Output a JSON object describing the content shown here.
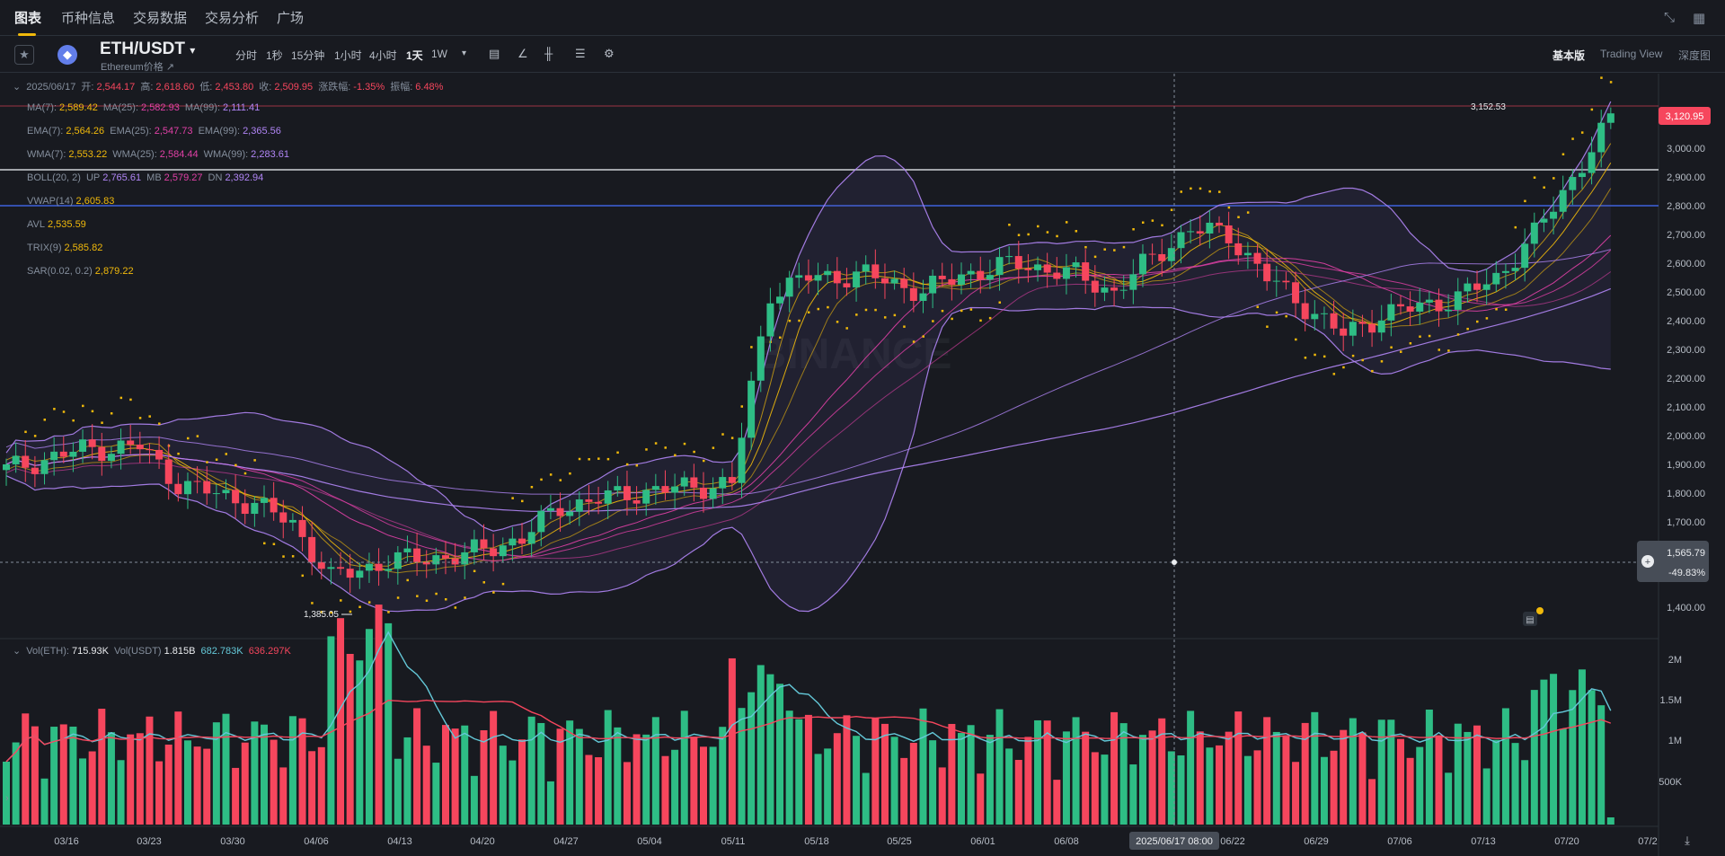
{
  "nav": {
    "tabs": [
      "图表",
      "币种信息",
      "交易数据",
      "交易分析",
      "广场"
    ],
    "active_tab": 0,
    "right_icons": [
      "collapse-icon",
      "layout-grid-icon"
    ]
  },
  "toolbar": {
    "pair": "ETH/USDT",
    "pair_caret": "▾",
    "subtitle": "Ethereum价格 ↗",
    "timeframes": [
      "分时",
      "1秒",
      "15分钟",
      "1小时",
      "4小时",
      "1天",
      "1W"
    ],
    "active_timeframe": "1天",
    "more_caret": "▾",
    "tool_icons": [
      "calendar-icon",
      "indicator-icon",
      "candle-type-icon",
      "layout-icon",
      "settings-icon"
    ],
    "views": [
      "基本版",
      "Trading View",
      "深度图"
    ],
    "active_view": "基本版"
  },
  "ohlc": {
    "date": "2025/06/17",
    "open_label": "开:",
    "open": "2,544.17",
    "high_label": "高:",
    "high": "2,618.60",
    "low_label": "低:",
    "low": "2,453.80",
    "close_label": "收:",
    "close": "2,509.95",
    "change_label": "涨跌幅:",
    "change": "-1.35%",
    "amp_label": "振幅:",
    "amp": "6.48%"
  },
  "indicators": {
    "ma": [
      {
        "label": "MA(7):",
        "value": "2,589.42",
        "color": "#f0b90b"
      },
      {
        "label": "MA(25):",
        "value": "2,582.93",
        "color": "#e040a6"
      },
      {
        "label": "MA(99):",
        "value": "2,111.41",
        "color": "#b085f5"
      }
    ],
    "ema": [
      {
        "label": "EMA(7):",
        "value": "2,564.26",
        "color": "#f0b90b"
      },
      {
        "label": "EMA(25):",
        "value": "2,547.73",
        "color": "#e040a6"
      },
      {
        "label": "EMA(99):",
        "value": "2,365.56",
        "color": "#b085f5"
      }
    ],
    "wma": [
      {
        "label": "WMA(7):",
        "value": "2,553.22",
        "color": "#f0b90b"
      },
      {
        "label": "WMA(25):",
        "value": "2,584.44",
        "color": "#e040a6"
      },
      {
        "label": "WMA(99):",
        "value": "2,283.61",
        "color": "#b085f5"
      }
    ],
    "boll": {
      "label": "BOLL(20, 2)",
      "up_label": "UP",
      "up": "2,765.61",
      "mb_label": "MB",
      "mb": "2,579.27",
      "dn_label": "DN",
      "dn": "2,392.94"
    },
    "vwap": {
      "label": "VWAP(14)",
      "value": "2,605.83"
    },
    "avl": {
      "label": "AVL",
      "value": "2,535.59"
    },
    "trix": {
      "label": "TRIX(9)",
      "value": "2,585.82"
    },
    "sar": {
      "label": "SAR(0.02, 0.2)",
      "value": "2,879.22"
    }
  },
  "price_axis": [
    "3,000.00",
    "2,900.00",
    "2,800.00",
    "2,700.00",
    "2,600.00",
    "2,500.00",
    "2,400.00",
    "2,300.00",
    "2,200.00",
    "2,100.00",
    "2,000.00",
    "1,900.00",
    "1,800.00",
    "1,700.00",
    "1,400.00"
  ],
  "current_price": "3,120.95",
  "cursor_price": "1,565.79",
  "cursor_change": "-49.83%",
  "high_marker": "3,152.53",
  "low_marker": "1,385.05",
  "volume": {
    "vol_eth_label": "Vol(ETH):",
    "vol_eth": "715.93K",
    "vol_usdt_label": "Vol(USDT)",
    "vol_usdt": "1.815B",
    "ma1": "682.783K",
    "ma2": "636.297K",
    "axis": [
      "2M",
      "1.5M",
      "1M",
      "500K"
    ]
  },
  "date_axis": [
    "03/16",
    "03/23",
    "03/30",
    "04/06",
    "04/13",
    "04/20",
    "04/27",
    "05/04",
    "05/11",
    "05/18",
    "05/25",
    "06/01",
    "06/08",
    "06/22",
    "06/29",
    "07/06",
    "07/13",
    "07/20",
    "07/2"
  ],
  "cursor_date": "2025/06/17 08:00",
  "colors": {
    "up": "#2ebd85",
    "down": "#f6465d",
    "bg": "#181a20",
    "accent": "#f0b90b"
  }
}
